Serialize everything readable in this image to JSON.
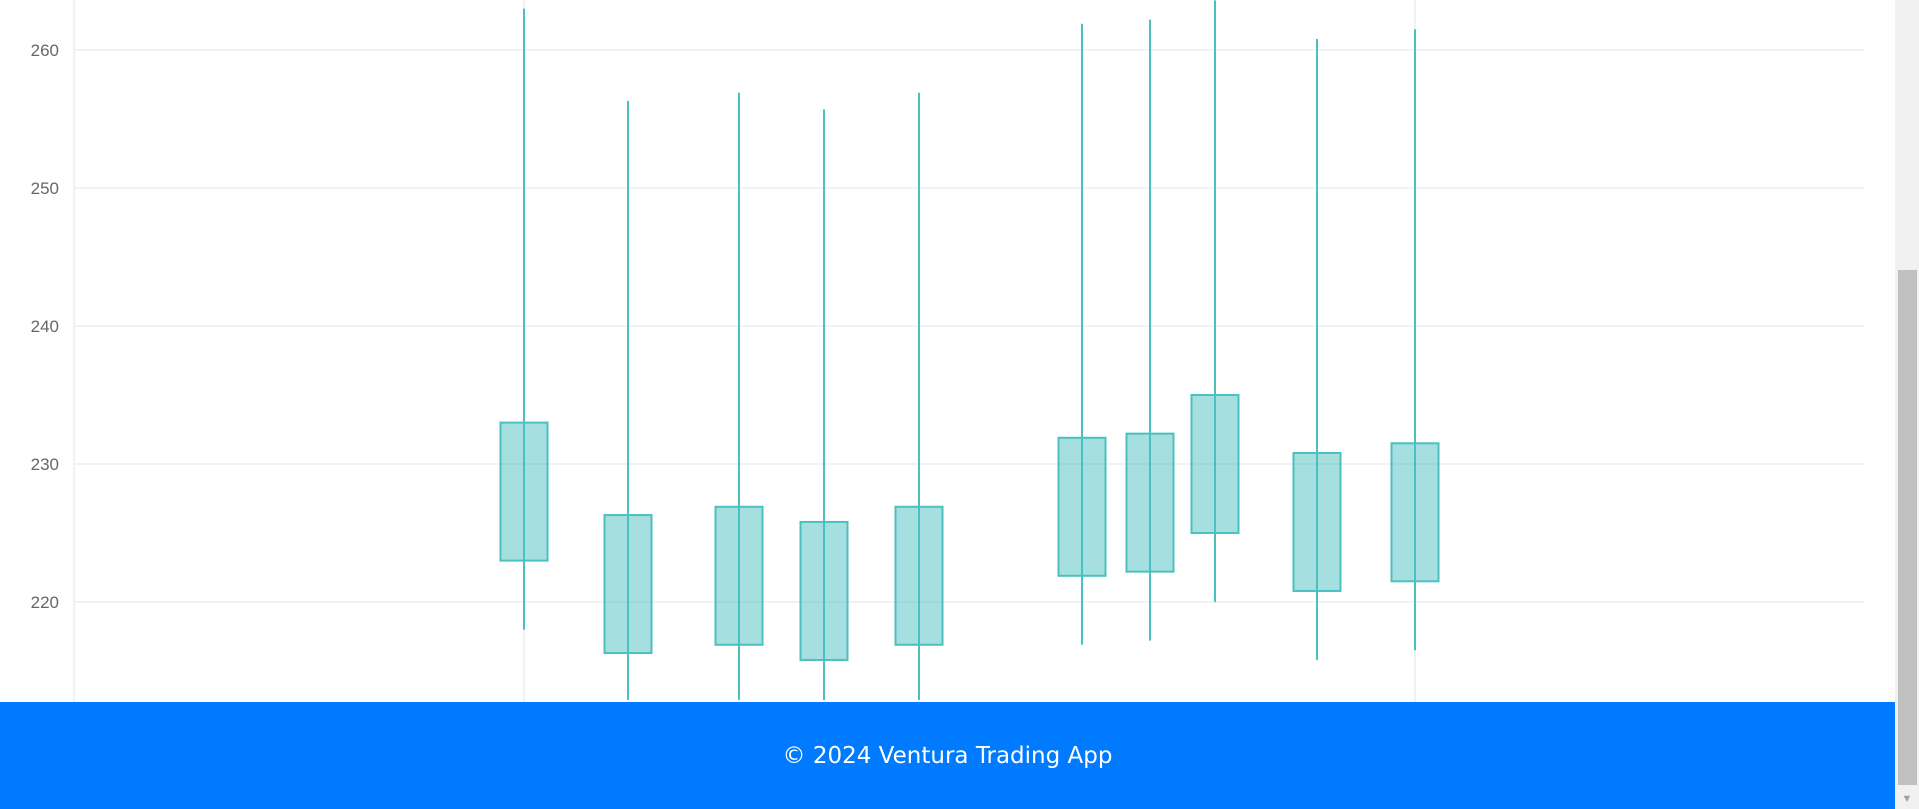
{
  "footer": {
    "text": "© 2024 Ventura Trading App"
  },
  "colors": {
    "footer_bg": "#007bff",
    "candle_fill": "rgba(75,192,192,0.5)",
    "candle_stroke": "#4bc0c0",
    "grid": "#e5e5e5",
    "tick_text": "#666666"
  },
  "scrollbar": {
    "down_arrow_icon": "chevron-down-icon"
  },
  "chart_data": {
    "type": "candlestick",
    "ylim": [
      212.9,
      263.6
    ],
    "yticks": [
      "220",
      "230",
      "240",
      "250",
      "260"
    ],
    "series": [
      {
        "candles": [
          {
            "open": 223.0,
            "close": 233.0,
            "high": 263.0,
            "low": 218.0
          },
          {
            "open": 216.3,
            "close": 226.3,
            "high": 256.3,
            "low": 212.9
          },
          {
            "open": 216.9,
            "close": 226.9,
            "high": 256.9,
            "low": 212.9
          },
          {
            "open": 215.8,
            "close": 225.8,
            "high": 255.7,
            "low": 212.9
          },
          {
            "open": 216.9,
            "close": 226.9,
            "high": 256.9,
            "low": 212.9
          },
          {
            "open": 221.9,
            "close": 231.9,
            "high": 261.9,
            "low": 216.9
          },
          {
            "open": 222.2,
            "close": 232.2,
            "high": 262.2,
            "low": 217.2
          },
          {
            "open": 225.0,
            "close": 235.0,
            "high": 263.6,
            "low": 220.0
          },
          {
            "open": 220.8,
            "close": 230.8,
            "high": 260.8,
            "low": 215.8
          },
          {
            "open": 221.5,
            "close": 231.5,
            "high": 261.5,
            "low": 216.5
          }
        ]
      }
    ]
  }
}
